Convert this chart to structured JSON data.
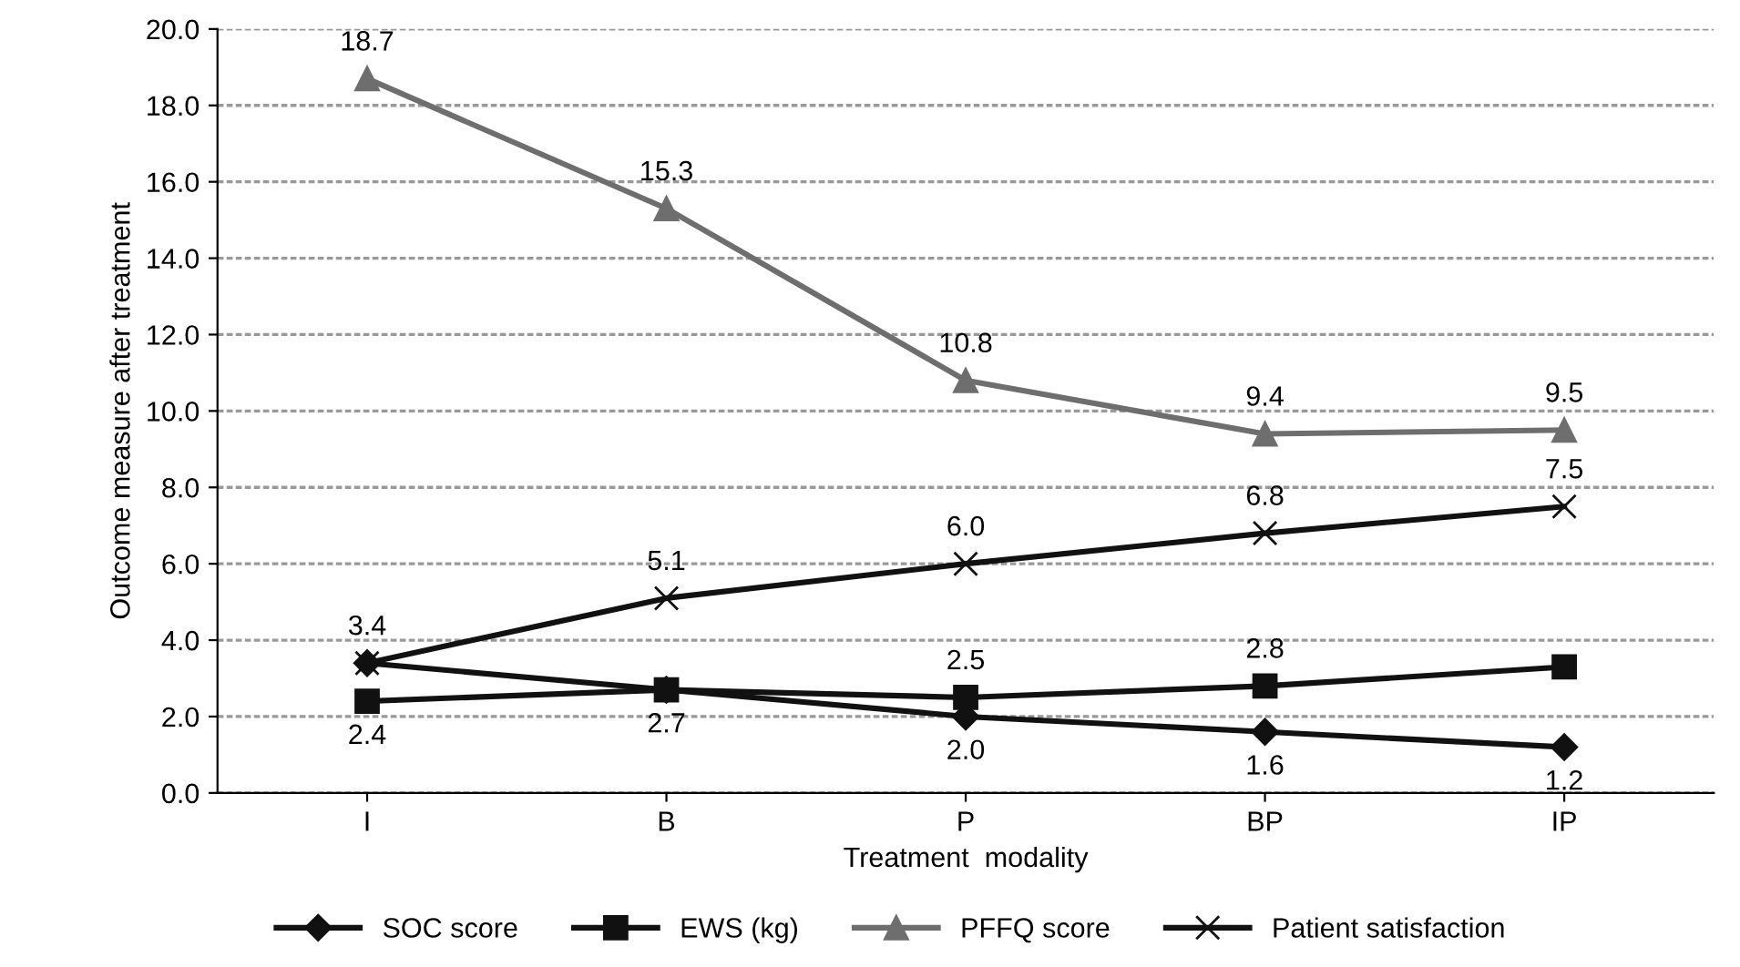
{
  "chart_data": {
    "type": "line",
    "xlabel": "Treatment  modality",
    "ylabel": "Outcome measure after treatment",
    "categories": [
      "I",
      "B",
      "P",
      "BP",
      "IP"
    ],
    "series": [
      {
        "name": "SOC score",
        "color": "#111111",
        "marker": "diamond",
        "values": [
          3.4,
          2.7,
          2.0,
          1.6,
          1.2
        ],
        "value_labels": [
          null,
          null,
          "2.0",
          "1.6",
          "1.2"
        ]
      },
      {
        "name": "EWS (kg)",
        "color": "#111111",
        "marker": "square",
        "values": [
          2.4,
          2.7,
          2.5,
          2.8,
          3.3
        ],
        "value_labels": [
          "2.4",
          "2.7",
          "2.5",
          "2.8",
          null
        ]
      },
      {
        "name": "PFFQ score",
        "color": "#6e6e6e",
        "marker": "triangle",
        "values": [
          18.7,
          15.3,
          10.8,
          9.4,
          9.5
        ],
        "value_labels": [
          "18.7",
          "15.3",
          "10.8",
          "9.4",
          "9.5"
        ]
      },
      {
        "name": "Patient satisfaction",
        "color": "#111111",
        "marker": "cross",
        "values": [
          3.4,
          5.1,
          6.0,
          6.8,
          7.5
        ],
        "value_labels": [
          "3.4",
          "5.1",
          "6.0",
          "6.8",
          "7.5"
        ]
      }
    ],
    "ylim": [
      0,
      20
    ],
    "yticks": [
      "0.0",
      "2.0",
      "4.0",
      "6.0",
      "8.0",
      "10.0",
      "12.0",
      "14.0",
      "16.0",
      "18.0",
      "20.0"
    ],
    "grid": "y",
    "legend": "bottom",
    "line_style": "solid"
  }
}
